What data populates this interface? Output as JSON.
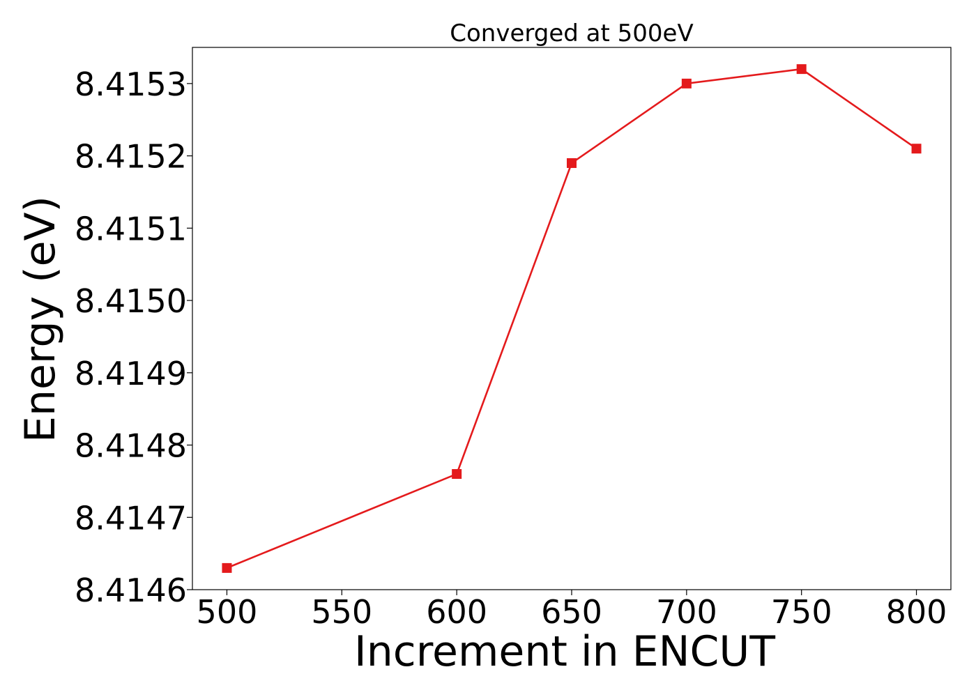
{
  "chart_data": {
    "type": "line",
    "title": "Converged at 500eV",
    "xlabel": "Increment in ENCUT",
    "ylabel": "Energy (eV)",
    "x": [
      500,
      600,
      650,
      700,
      750,
      800
    ],
    "series": [
      {
        "values": [
          8.41463,
          8.41476,
          8.41519,
          8.4153,
          8.41532,
          8.41521
        ],
        "color": "#e41a1c",
        "marker": "square"
      }
    ],
    "xlim": [
      485,
      815
    ],
    "ylim": [
      8.4146,
      8.41535
    ],
    "xticks": [
      500,
      550,
      600,
      650,
      700,
      750,
      800
    ],
    "yticks": [
      8.4146,
      8.4147,
      8.4148,
      8.4149,
      8.415,
      8.4151,
      8.4152,
      8.4153
    ],
    "ytick_decimals": 4,
    "grid": false,
    "legend": "none"
  }
}
